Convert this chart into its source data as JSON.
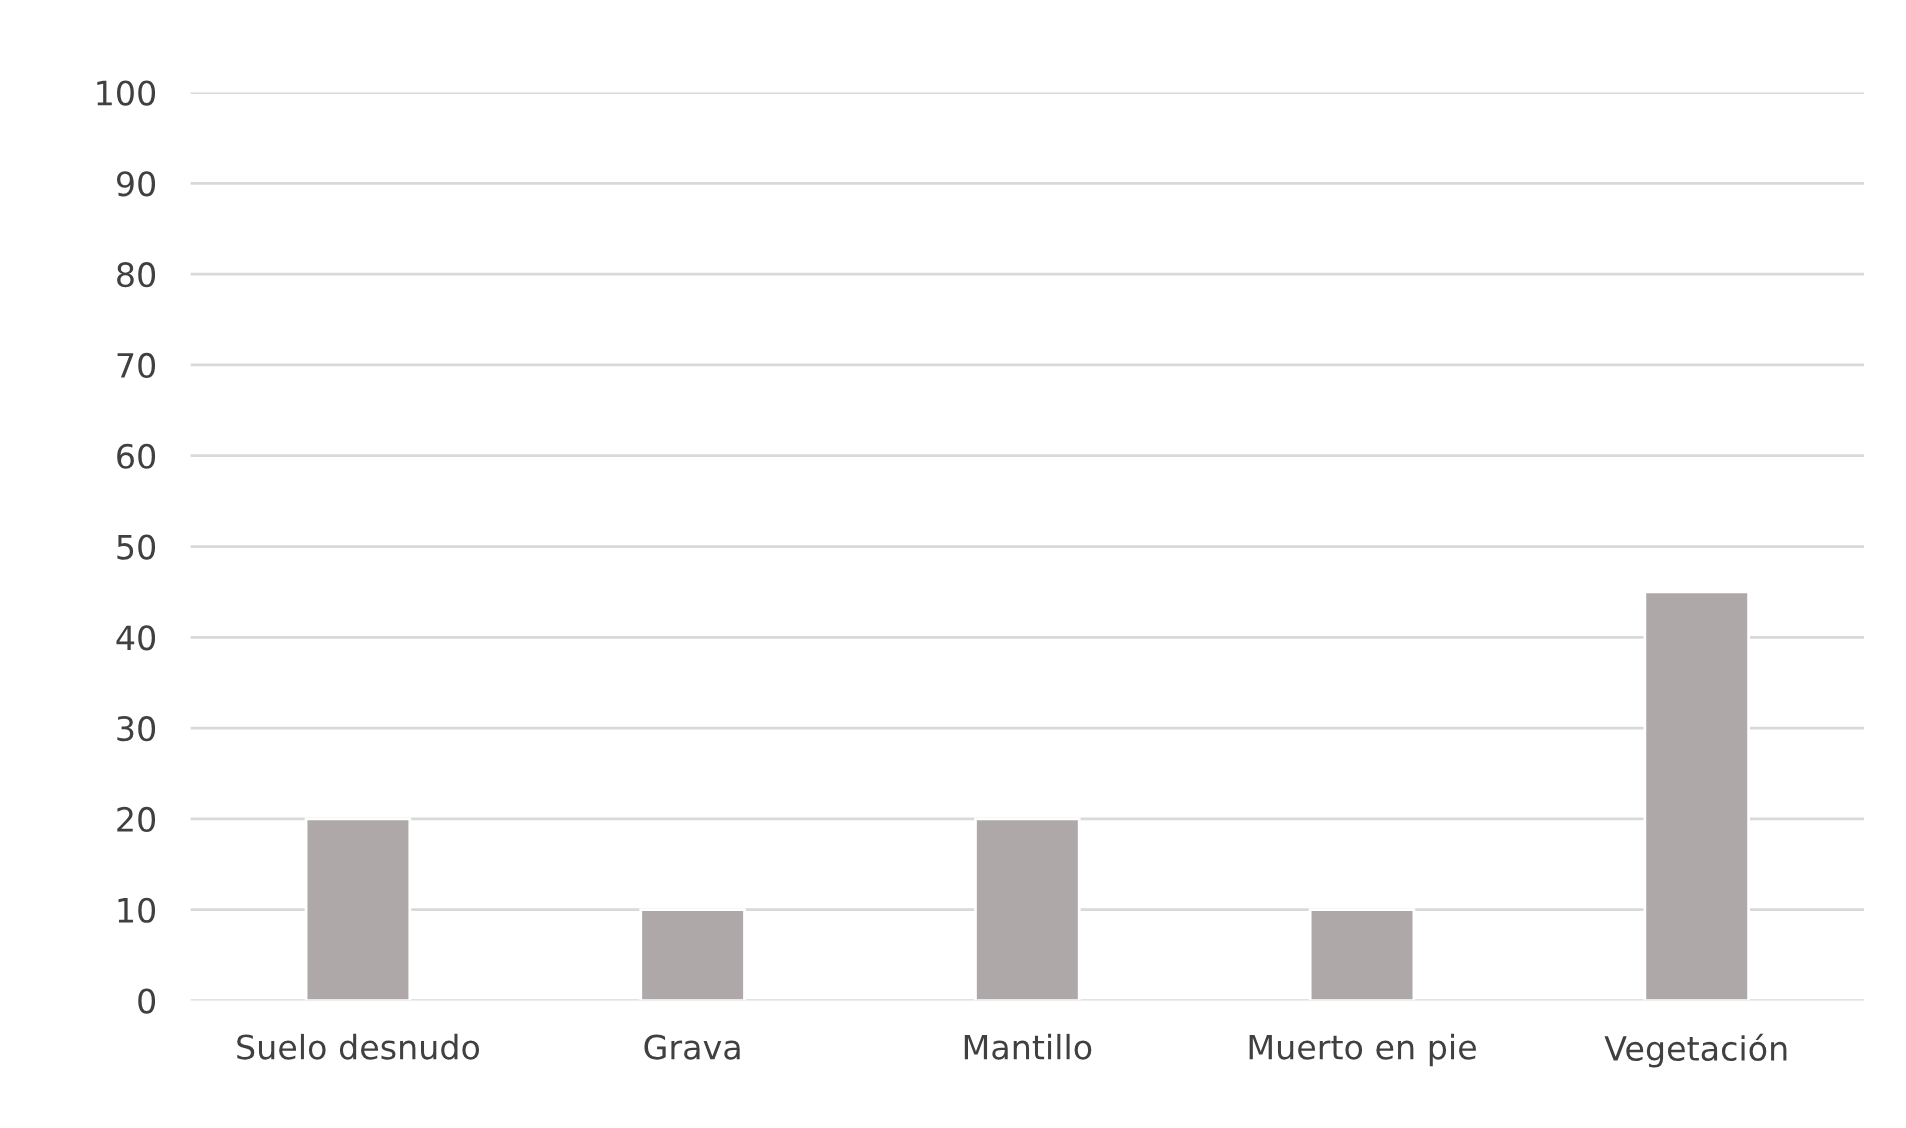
{
  "chart_data": {
    "type": "bar",
    "categories": [
      "Suelo desnudo",
      "Grava",
      "Mantillo",
      "Muerto en pie",
      "Vegetación"
    ],
    "values": [
      20,
      10,
      20,
      10,
      45
    ],
    "color": "#aea8a8",
    "ylim": [
      0,
      100
    ],
    "yticks": [
      0,
      10,
      20,
      30,
      40,
      50,
      60,
      70,
      80,
      90,
      100
    ],
    "grid": "y",
    "legend": false
  }
}
